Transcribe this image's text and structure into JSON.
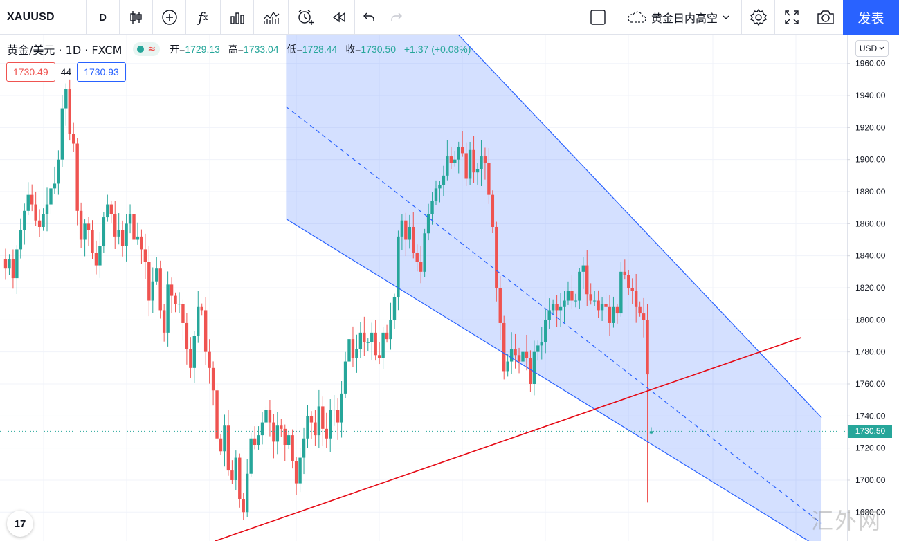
{
  "toolbar": {
    "symbol": "XAUUSD",
    "interval": "D",
    "icons": [
      "bar-style-icon",
      "add-indicator-icon",
      "fx-indicators-icon",
      "templates-icon",
      "compare-icon",
      "alert-icon",
      "replay-icon",
      "undo-icon",
      "redo-icon",
      "layout-square-icon",
      "cloud-icon",
      "settings-icon",
      "fullscreen-icon",
      "camera-icon"
    ],
    "layout_name": "黄金日内高空",
    "publish_label": "发表"
  },
  "legend": {
    "title": "黄金/美元 · 1D · FXCM",
    "open_label": "开=",
    "open": "1729.13",
    "high_label": "高=",
    "high": "1733.04",
    "low_label": "低=",
    "low": "1728.44",
    "close_label": "收=",
    "close": "1730.50",
    "change": "+1.37 (+0.08%)"
  },
  "quotes": {
    "bid": "1730.49",
    "spread": "44",
    "ask": "1730.93"
  },
  "currency": "USD",
  "current_price": "1730.50",
  "logo": "17",
  "watermark": "汇外网",
  "colors": {
    "up": "#26a69a",
    "down": "#ef5350",
    "channel": "#2962ff",
    "trendline": "#e50914",
    "accent": "#2962ff"
  },
  "chart_data": {
    "type": "candlestick",
    "y_axis_ticks": [
      1960,
      1940,
      1920,
      1900,
      1880,
      1860,
      1840,
      1820,
      1800,
      1780,
      1760,
      1740,
      1720,
      1700,
      1680
    ],
    "y_axis_labels": [
      "1960.00",
      "1940.00",
      "1920.00",
      "1900.00",
      "1880.00",
      "1860.00",
      "1840.00",
      "1820.00",
      "1800.00",
      "1780.00",
      "1760.00",
      "1740.00",
      "1720.00",
      "1700.00",
      "1680.00"
    ],
    "ylim": [
      1662,
      1978
    ],
    "grid": true,
    "series_closes": [
      1832,
      1838,
      1826,
      1844,
      1856,
      1868,
      1878,
      1872,
      1862,
      1858,
      1866,
      1872,
      1882,
      1885,
      1900,
      1932,
      1944,
      1916,
      1910,
      1868,
      1850,
      1860,
      1856,
      1842,
      1834,
      1846,
      1864,
      1872,
      1866,
      1852,
      1856,
      1846,
      1860,
      1866,
      1850,
      1852,
      1844,
      1836,
      1812,
      1824,
      1832,
      1806,
      1792,
      1822,
      1815,
      1810,
      1810,
      1798,
      1782,
      1770,
      1790,
      1808,
      1806,
      1780,
      1770,
      1756,
      1726,
      1718,
      1734,
      1706,
      1700,
      1714,
      1688,
      1680,
      1704,
      1726,
      1722,
      1728,
      1736,
      1744,
      1736,
      1724,
      1734,
      1732,
      1722,
      1728,
      1712,
      1698,
      1714,
      1726,
      1740,
      1736,
      1728,
      1746,
      1732,
      1726,
      1744,
      1744,
      1736,
      1754,
      1774,
      1788,
      1776,
      1782,
      1792,
      1786,
      1786,
      1792,
      1778,
      1776,
      1792,
      1788,
      1800,
      1814,
      1852,
      1862,
      1850,
      1858,
      1842,
      1836,
      1830,
      1854,
      1866,
      1874,
      1882,
      1884,
      1890,
      1902,
      1898,
      1900,
      1908,
      1904,
      1888,
      1906,
      1892,
      1894,
      1902,
      1898,
      1878,
      1858,
      1820,
      1798,
      1768,
      1774,
      1782,
      1778,
      1774,
      1780,
      1776,
      1760,
      1780,
      1784,
      1786,
      1800,
      1806,
      1810,
      1806,
      1808,
      1812,
      1818,
      1812,
      1812,
      1830,
      1834,
      1816,
      1812,
      1812,
      1806,
      1810,
      1808,
      1798,
      1808,
      1804,
      1830,
      1828,
      1820,
      1818,
      1808,
      1804,
      1800,
      1766,
      1726
    ],
    "last_candle": {
      "open": 1729.13,
      "high": 1733.04,
      "low": 1728.44,
      "close": 1730.5
    },
    "channel_line_1": {
      "from": [
        0.3377,
        1863
      ],
      "to": [
        0.9698,
        1657
      ],
      "style": "solid"
    },
    "channel_line_2": {
      "from": [
        0.541,
        1978
      ],
      "to": [
        0.9698,
        1739
      ],
      "style": "solid"
    },
    "channel_mid": {
      "from": [
        0.3377,
        1933
      ],
      "to": [
        0.9698,
        1673
      ],
      "style": "dashed"
    },
    "trendline": {
      "from": [
        0.2541,
        1662
      ],
      "to": [
        0.9461,
        1789
      ],
      "style": "solid"
    },
    "current_price_line": 1730.5
  }
}
